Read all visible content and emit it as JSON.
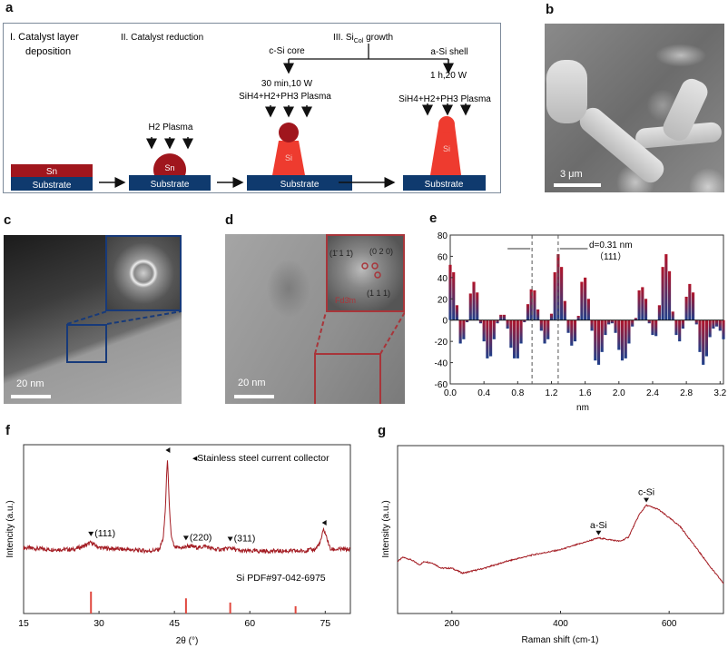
{
  "panel_labels": {
    "a": "a",
    "b": "b",
    "c": "c",
    "d": "d",
    "e": "e",
    "f": "f",
    "g": "g"
  },
  "colors": {
    "sn": "#a0161d",
    "si": "#ee3b2f",
    "substrate": "#0f3a6e",
    "curve": "#a31b22",
    "inset_c": "#173a7a",
    "inset_d": "#a8353a"
  },
  "schematic": {
    "step1_line1": "I. Catalyst layer",
    "step1_line2": "deposition",
    "step2": "II. Catalyst reduction",
    "step3_prefix": "III. Si",
    "step3_sub": "Col",
    "step3_suffix": " growth",
    "core_label": "c-Si core",
    "shell_label": "a-Si shell",
    "core_cond": "30 min,10 W",
    "shell_cond": "1 h,20 W",
    "plasma_gas": "SiH4+H2+PH3 Plasma",
    "h2_plasma": "H2 Plasma",
    "sn": "Sn",
    "si": "Si",
    "substrate": "Substrate"
  },
  "sem": {
    "scale": "3 μm"
  },
  "tem_c": {
    "scale": "20 nm"
  },
  "tem_d": {
    "scale": "20 nm",
    "fft_labels": [
      "(1̄ 1 1̄)",
      "(0 2 0)",
      "(1 1 1)"
    ],
    "space_group": "Fd3̄m"
  },
  "chart_data": [
    {
      "panel": "e",
      "type": "bar",
      "xlabel": "nm",
      "ylabel": "",
      "xlim": [
        0,
        3.24
      ],
      "ylim": [
        -60,
        80
      ],
      "xticks": [
        0.0,
        0.4,
        0.8,
        1.2,
        1.6,
        2.0,
        2.4,
        2.8,
        3.2
      ],
      "yticks": [
        -60,
        -40,
        -20,
        0,
        20,
        40,
        60,
        80
      ],
      "annotation": {
        "text": "d=0.31 nm",
        "subtext": "（111）",
        "markers_x": [
          0.97,
          1.28
        ]
      },
      "x": [
        0.0,
        0.04,
        0.08,
        0.12,
        0.16,
        0.2,
        0.24,
        0.28,
        0.32,
        0.36,
        0.4,
        0.44,
        0.48,
        0.52,
        0.56,
        0.6,
        0.64,
        0.68,
        0.72,
        0.76,
        0.8,
        0.84,
        0.88,
        0.92,
        0.96,
        1.0,
        1.04,
        1.08,
        1.12,
        1.16,
        1.2,
        1.24,
        1.28,
        1.32,
        1.36,
        1.4,
        1.44,
        1.48,
        1.52,
        1.56,
        1.6,
        1.64,
        1.68,
        1.72,
        1.76,
        1.8,
        1.84,
        1.88,
        1.92,
        1.96,
        2.0,
        2.04,
        2.08,
        2.12,
        2.16,
        2.2,
        2.24,
        2.28,
        2.32,
        2.36,
        2.4,
        2.44,
        2.48,
        2.52,
        2.56,
        2.6,
        2.64,
        2.68,
        2.72,
        2.76,
        2.8,
        2.84,
        2.88,
        2.92,
        2.96,
        3.0,
        3.04,
        3.08,
        3.12,
        3.16,
        3.2,
        3.24
      ],
      "values": [
        52,
        45,
        14,
        -22,
        -18,
        -2,
        25,
        36,
        26,
        -3,
        -20,
        -36,
        -34,
        -18,
        -3,
        5,
        5,
        -8,
        -26,
        -36,
        -36,
        -22,
        -2,
        15,
        29,
        28,
        10,
        -10,
        -22,
        -18,
        6,
        45,
        62,
        50,
        18,
        -12,
        -24,
        -20,
        4,
        36,
        40,
        20,
        -10,
        -38,
        -42,
        -30,
        -14,
        -4,
        -3,
        -12,
        -28,
        -38,
        -36,
        -22,
        -6,
        2,
        28,
        31,
        20,
        -3,
        -14,
        -15,
        14,
        50,
        62,
        46,
        8,
        -14,
        -20,
        -8,
        22,
        34,
        26,
        -4,
        -30,
        -42,
        -34,
        -16,
        -8,
        -6,
        -10,
        -18
      ]
    },
    {
      "panel": "f",
      "type": "line",
      "xlabel": "2θ (°)",
      "ylabel": "Intencity (a.u.)",
      "xlim": [
        15,
        80
      ],
      "ylim": [
        0,
        1
      ],
      "xticks": [
        15,
        30,
        45,
        60,
        75
      ],
      "legend": "◂Stainless steel current collector",
      "points": [
        [
          15,
          0.39
        ],
        [
          20,
          0.38
        ],
        [
          25,
          0.38
        ],
        [
          27,
          0.4
        ],
        [
          28.4,
          0.42
        ],
        [
          30,
          0.39
        ],
        [
          35,
          0.38
        ],
        [
          40,
          0.37
        ],
        [
          42,
          0.38
        ],
        [
          42.8,
          0.45
        ],
        [
          43.2,
          0.62
        ],
        [
          43.6,
          0.93
        ],
        [
          44.0,
          0.62
        ],
        [
          44.4,
          0.45
        ],
        [
          45,
          0.39
        ],
        [
          47,
          0.39
        ],
        [
          47.5,
          0.4
        ],
        [
          50,
          0.39
        ],
        [
          51,
          0.4
        ],
        [
          53,
          0.38
        ],
        [
          55,
          0.38
        ],
        [
          56.1,
          0.39
        ],
        [
          58,
          0.37
        ],
        [
          65,
          0.37
        ],
        [
          70,
          0.37
        ],
        [
          73,
          0.38
        ],
        [
          74,
          0.42
        ],
        [
          74.7,
          0.5
        ],
        [
          75.4,
          0.44
        ],
        [
          76,
          0.38
        ],
        [
          80,
          0.38
        ]
      ],
      "peak_labels": [
        {
          "x": 28.4,
          "text": "(111)"
        },
        {
          "x": 47.3,
          "text": "(220)"
        },
        {
          "x": 56.1,
          "text": "(311)"
        }
      ],
      "steel_markers_x": [
        43.6,
        74.7
      ],
      "reference": {
        "label": "Si PDF#97-042-6975",
        "sticks": [
          [
            28.4,
            0.13
          ],
          [
            47.3,
            0.09
          ],
          [
            56.1,
            0.065
          ],
          [
            69.1,
            0.043
          ]
        ]
      }
    },
    {
      "panel": "g",
      "type": "line",
      "xlabel": "Raman shift (cm-1)",
      "ylabel": "Intensity (a.u.)",
      "xlim": [
        100,
        700
      ],
      "ylim": [
        0,
        1
      ],
      "xticks": [
        200,
        400,
        600
      ],
      "points": [
        [
          100,
          0.31
        ],
        [
          110,
          0.335
        ],
        [
          125,
          0.32
        ],
        [
          140,
          0.29
        ],
        [
          150,
          0.31
        ],
        [
          165,
          0.3
        ],
        [
          180,
          0.27
        ],
        [
          200,
          0.27
        ],
        [
          220,
          0.24
        ],
        [
          260,
          0.27
        ],
        [
          300,
          0.31
        ],
        [
          350,
          0.35
        ],
        [
          400,
          0.38
        ],
        [
          440,
          0.42
        ],
        [
          460,
          0.44
        ],
        [
          470,
          0.45
        ],
        [
          490,
          0.44
        ],
        [
          510,
          0.43
        ],
        [
          525,
          0.455
        ],
        [
          545,
          0.59
        ],
        [
          558,
          0.645
        ],
        [
          580,
          0.62
        ],
        [
          620,
          0.52
        ],
        [
          650,
          0.39
        ],
        [
          680,
          0.26
        ],
        [
          700,
          0.18
        ]
      ],
      "peak_labels": [
        {
          "x": 470,
          "text": "a-Si"
        },
        {
          "x": 558,
          "text": "c-Si"
        }
      ]
    }
  ]
}
